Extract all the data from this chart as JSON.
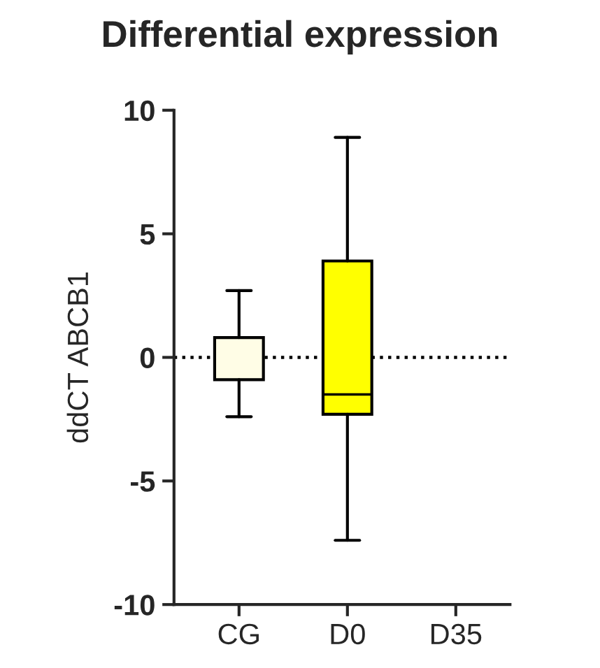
{
  "chart_data": {
    "type": "box",
    "title": "Differential expression",
    "ylabel": "ddCT ABCB1",
    "categories": [
      "CG",
      "D0",
      "D35"
    ],
    "boxes": [
      {
        "low": -2.4,
        "q1": -0.9,
        "median": 0.8,
        "q3": 0.8,
        "high": 2.7
      },
      {
        "low": -7.4,
        "q1": -2.3,
        "median": -1.5,
        "q3": 3.9,
        "high": 8.9
      },
      null
    ],
    "colors": [
      "#fffde6",
      "#ffff00",
      "#ffff00"
    ],
    "ylim": [
      -10,
      10
    ],
    "yticks": [
      -10,
      -5,
      0,
      5,
      10
    ],
    "grid": false,
    "ref_lines": [
      {
        "axis": "y",
        "value": 0,
        "line_style": "dotted",
        "color": "#000000"
      }
    ]
  }
}
